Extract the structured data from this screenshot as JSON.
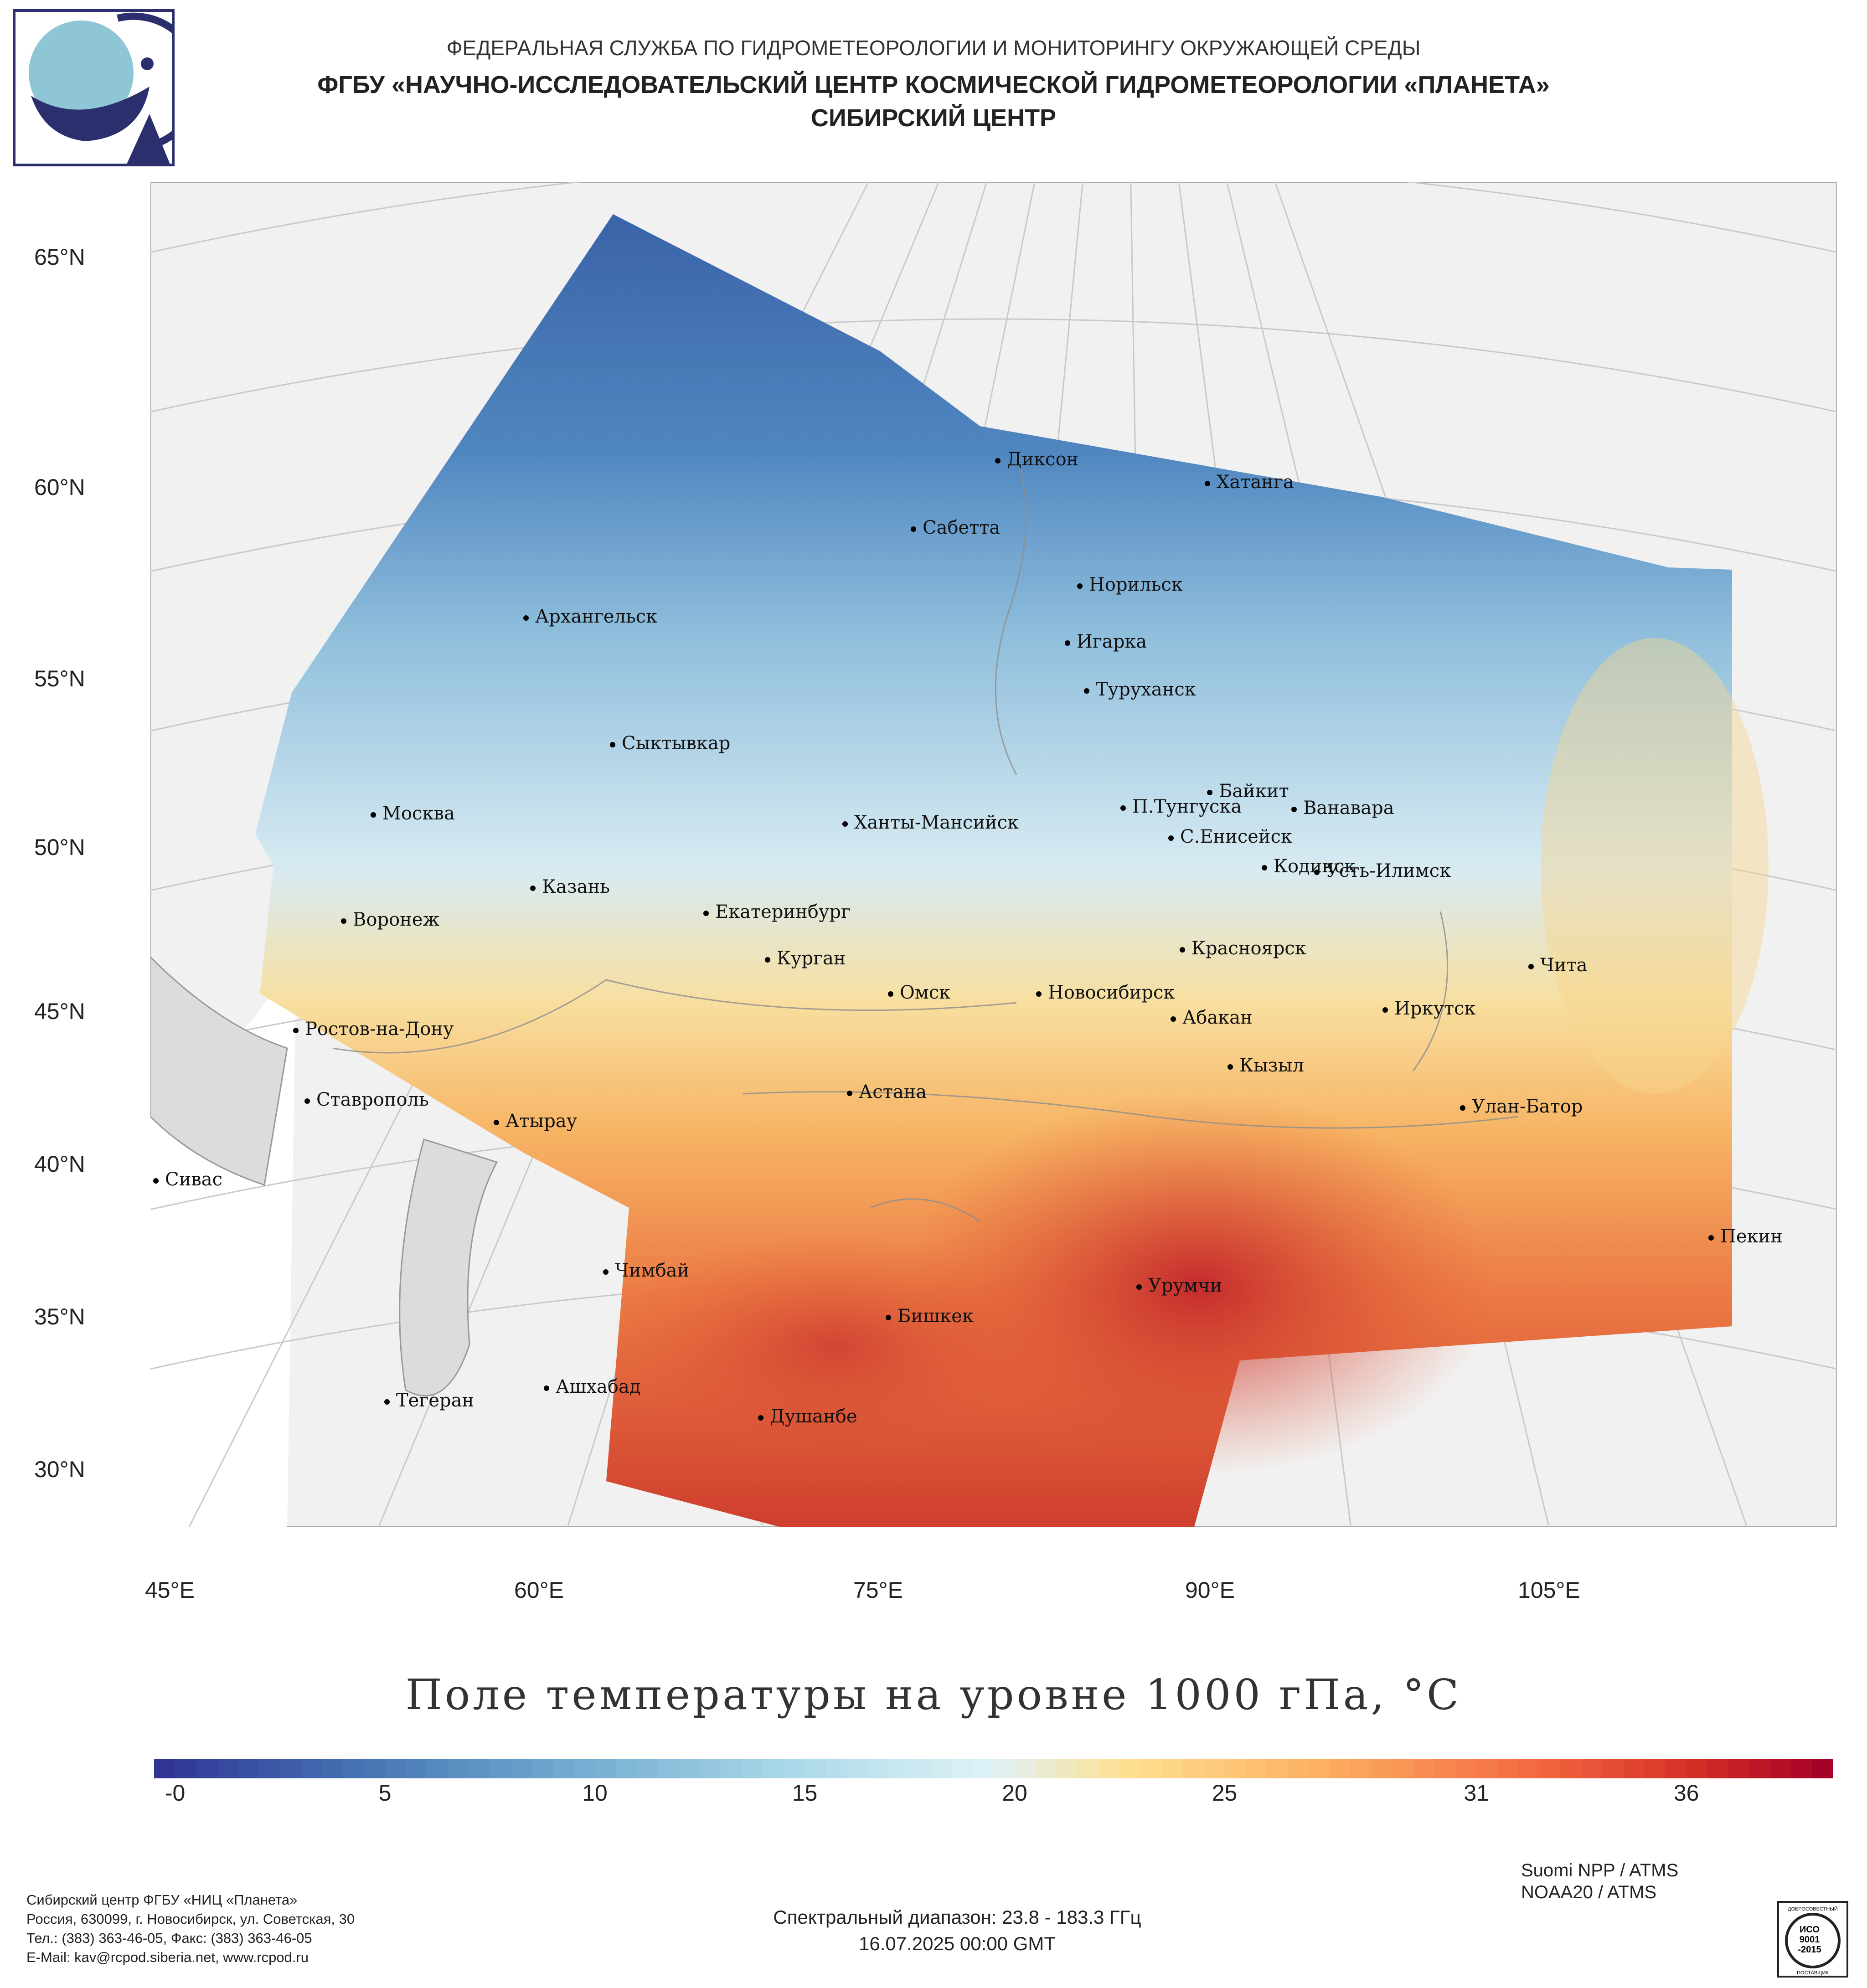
{
  "header": {
    "agency": "ФЕДЕРАЛЬНАЯ СЛУЖБА ПО ГИДРОМЕТЕОРОЛОГИИ И МОНИТОРИНГУ ОКРУЖАЮЩЕЙ СРЕДЫ",
    "center": "ФГБУ «НАУЧНО-ИССЛЕДОВАТЕЛЬСКИЙ ЦЕНТР КОСМИЧЕСКОЙ ГИДРОМЕТЕОРОЛОГИИ «ПЛАНЕТА»",
    "branch": "СИБИРСКИЙ ЦЕНТР"
  },
  "map": {
    "lat_labels": [
      "65°N",
      "60°N",
      "55°N",
      "50°N",
      "45°N",
      "40°N",
      "35°N",
      "30°N"
    ],
    "lon_labels": [
      "45°E",
      "60°E",
      "75°E",
      "90°E",
      "105°E"
    ],
    "cities": [
      "Диксон",
      "Хатанга",
      "Сабетта",
      "Норильск",
      "Архангельск",
      "Игарка",
      "Туруханск",
      "Сыктывкар",
      "Байкит",
      "П.Тунгуска",
      "Ванавара",
      "Москва",
      "Ханты-Мансийск",
      "С.Енисейск",
      "Кодинск",
      "Усть-Илимск",
      "Казань",
      "Екатеринбург",
      "Воронеж",
      "Красноярск",
      "Курган",
      "Чита",
      "Омск",
      "Новосибирск",
      "Иркутск",
      "Ростов-на-Дону",
      "Абакан",
      "Кызыл",
      "Астана",
      "Ставрополь",
      "Улан-Батор",
      "Атырау",
      "Сивас",
      "Пекин",
      "Чимбай",
      "Урумчи",
      "Бишкек",
      "Ашхабад",
      "Тегеран",
      "Душанбе"
    ]
  },
  "colors": {
    "ocean": "#ffffff",
    "land_gray": "#dcdcdc",
    "cold": "#3a63a8",
    "neutral": "#e8f1f2",
    "warm": "#f5b25e",
    "hot": "#c8262b"
  },
  "chart_data": {
    "type": "heatmap",
    "title": "Поле температуры на уровне 1000 гПа, °С",
    "colorbar_ticks": [
      "-0",
      "5",
      "10",
      "15",
      "20",
      "25",
      "31",
      "36"
    ],
    "colorbar_range": [
      -0.5,
      39.5
    ]
  },
  "footer": {
    "org_lines": [
      "Сибирский центр ФГБУ «НИЦ «Планета»",
      "Россия, 630099, г. Новосибирск, ул. Советская, 30",
      "Тел.: (383) 363-46-05, Факс: (383) 363-46-05",
      "E-Mail: kav@rcpod.siberia.net, www.rcpod.ru"
    ],
    "spectral": "Спектральный диапазон: 23.8 - 183.3 ГГц",
    "datetime": "16.07.2025 00:00 GMT",
    "satellites": [
      "Suomi NPP / ATMS",
      "NOAA20 / ATMS"
    ],
    "iso_text": [
      "ДОБРОСОВЕСТНЫЙ",
      "ИСО",
      "9001",
      "-2015",
      "ПОСТАВЩИК"
    ]
  }
}
